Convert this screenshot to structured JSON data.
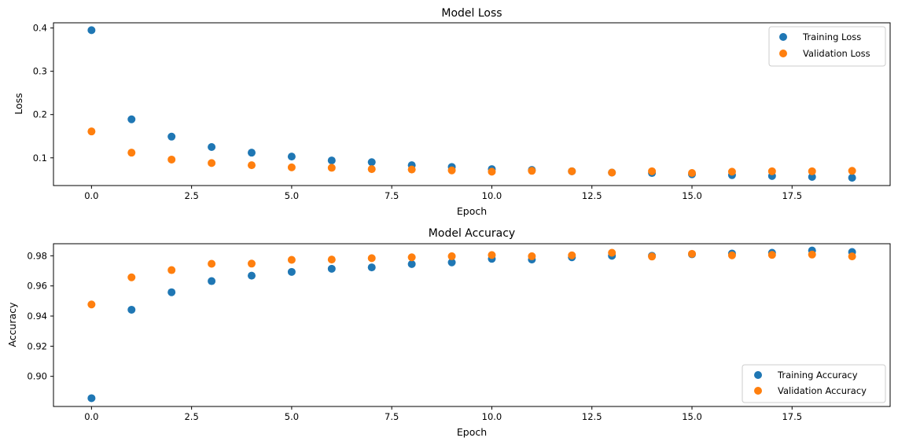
{
  "colors": {
    "training": "#1f77b4",
    "validation": "#ff7f0e"
  },
  "chart_data": [
    {
      "type": "scatter",
      "title": "Model Loss",
      "xlabel": "Epoch",
      "ylabel": "Loss",
      "xlim": [
        -0.95,
        19.95
      ],
      "ylim": [
        0.036,
        0.412
      ],
      "xticks": [
        0,
        2.5,
        5,
        7.5,
        10,
        12.5,
        15,
        17.5
      ],
      "xtick_labels": [
        "0.0",
        "2.5",
        "5.0",
        "7.5",
        "10.0",
        "12.5",
        "15.0",
        "17.5"
      ],
      "yticks": [
        0.1,
        0.2,
        0.3,
        0.4
      ],
      "ytick_labels": [
        "0.1",
        "0.2",
        "0.3",
        "0.4"
      ],
      "legend": "top-right",
      "grid": false,
      "series": [
        {
          "name": "Training Loss",
          "color": "#1f77b4",
          "x": [
            0,
            1,
            2,
            3,
            4,
            5,
            6,
            7,
            8,
            9,
            10,
            11,
            12,
            13,
            14,
            15,
            16,
            17,
            18,
            19
          ],
          "y": [
            0.395,
            0.189,
            0.149,
            0.125,
            0.112,
            0.103,
            0.094,
            0.09,
            0.083,
            0.079,
            0.074,
            0.072,
            0.069,
            0.066,
            0.065,
            0.062,
            0.06,
            0.058,
            0.056,
            0.054
          ]
        },
        {
          "name": "Validation Loss",
          "color": "#ff7f0e",
          "x": [
            0,
            1,
            2,
            3,
            4,
            5,
            6,
            7,
            8,
            9,
            10,
            11,
            12,
            13,
            14,
            15,
            16,
            17,
            18,
            19
          ],
          "y": [
            0.161,
            0.112,
            0.096,
            0.088,
            0.083,
            0.078,
            0.077,
            0.074,
            0.073,
            0.071,
            0.068,
            0.07,
            0.069,
            0.066,
            0.069,
            0.065,
            0.068,
            0.069,
            0.069,
            0.07
          ]
        }
      ]
    },
    {
      "type": "scatter",
      "title": "Model Accuracy",
      "xlabel": "Epoch",
      "ylabel": "Accuracy",
      "xlim": [
        -0.95,
        19.95
      ],
      "ylim": [
        0.88,
        0.988
      ],
      "xticks": [
        0,
        2.5,
        5,
        7.5,
        10,
        12.5,
        15,
        17.5
      ],
      "xtick_labels": [
        "0.0",
        "2.5",
        "5.0",
        "7.5",
        "10.0",
        "12.5",
        "15.0",
        "17.5"
      ],
      "yticks": [
        0.9,
        0.92,
        0.94,
        0.96,
        0.98
      ],
      "ytick_labels": [
        "0.90",
        "0.92",
        "0.94",
        "0.96",
        "0.98"
      ],
      "legend": "bottom-right",
      "grid": false,
      "series": [
        {
          "name": "Training Accuracy",
          "color": "#1f77b4",
          "x": [
            0,
            1,
            2,
            3,
            4,
            5,
            6,
            7,
            8,
            9,
            10,
            11,
            12,
            13,
            14,
            15,
            16,
            17,
            18,
            19
          ],
          "y": [
            0.8855,
            0.9442,
            0.9558,
            0.9632,
            0.9668,
            0.9693,
            0.9714,
            0.9723,
            0.9745,
            0.9756,
            0.978,
            0.9775,
            0.979,
            0.98,
            0.98,
            0.981,
            0.9815,
            0.982,
            0.9835,
            0.9825
          ]
        },
        {
          "name": "Validation Accuracy",
          "color": "#ff7f0e",
          "x": [
            0,
            1,
            2,
            3,
            4,
            5,
            6,
            7,
            8,
            9,
            10,
            11,
            12,
            13,
            14,
            15,
            16,
            17,
            18,
            19
          ],
          "y": [
            0.9477,
            0.9657,
            0.9705,
            0.9747,
            0.9748,
            0.9773,
            0.9775,
            0.9784,
            0.979,
            0.9797,
            0.9805,
            0.9797,
            0.9803,
            0.982,
            0.9795,
            0.9813,
            0.9803,
            0.9806,
            0.9808,
            0.9796
          ]
        }
      ]
    }
  ]
}
